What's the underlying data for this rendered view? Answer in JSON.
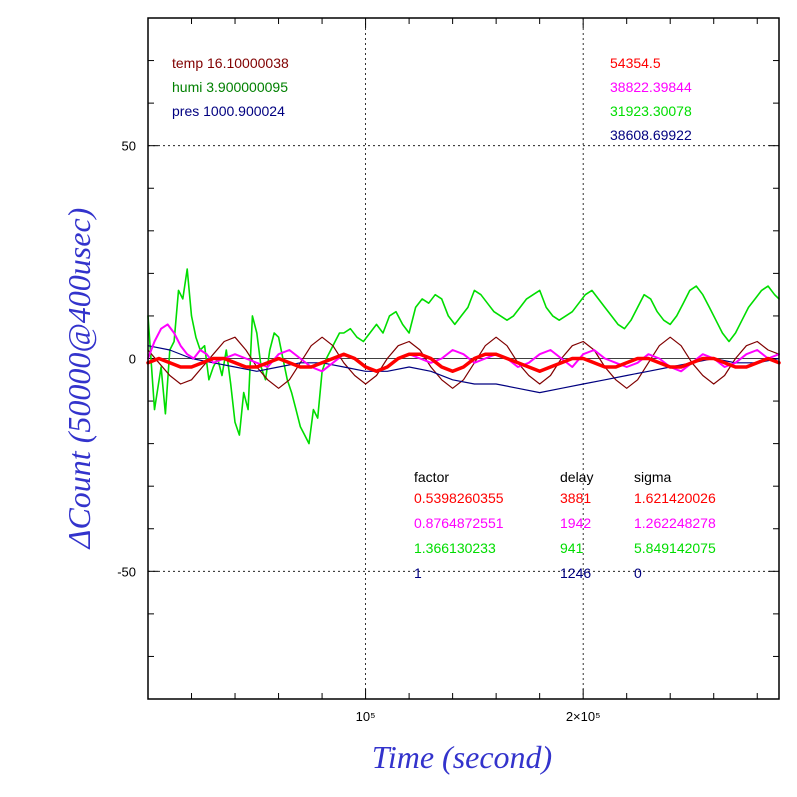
{
  "chart_data": {
    "type": "line",
    "xlabel": "Time (second)",
    "ylabel": "ΔCount (50000@400usec)",
    "xlim": [
      0,
      290000
    ],
    "ylim": [
      -80,
      80
    ],
    "x_tick_values": [
      100000,
      200000
    ],
    "x_tick_labels": [
      "10⁵",
      "2×10⁵"
    ],
    "y_tick_values": [
      -50,
      0,
      50
    ],
    "y_tick_labels": [
      "-50",
      "0",
      "50"
    ],
    "grid": "dotted at labeled ticks",
    "colors": {
      "red": "#ff0000",
      "magenta": "#ff00ff",
      "green": "#00dd00",
      "navy": "#000080",
      "dark_red": "#800000",
      "dark_green": "#008000"
    },
    "env_legend": [
      {
        "label": "temp 16.10000038",
        "color": "#800000"
      },
      {
        "label": "humi 3.900000095",
        "color": "#008000"
      },
      {
        "label": "pres 1000.900024",
        "color": "#000080"
      }
    ],
    "baselines": [
      {
        "value": "54354.5",
        "color": "#ff0000"
      },
      {
        "value": "38822.39844",
        "color": "#ff00ff"
      },
      {
        "value": "31923.30078",
        "color": "#00dd00"
      },
      {
        "value": "38608.69922",
        "color": "#000080"
      }
    ],
    "fit_table": {
      "headers": [
        "factor",
        "delay",
        "sigma"
      ],
      "rows": [
        {
          "factor": "0.5398260355",
          "delay": "3881",
          "sigma": "1.621420026",
          "color": "#ff0000"
        },
        {
          "factor": "0.8764872551",
          "delay": "1942",
          "sigma": "1.262248278",
          "color": "#ff00ff"
        },
        {
          "factor": "1.366130233",
          "delay": "941",
          "sigma": "5.849142075",
          "color": "#00dd00"
        },
        {
          "factor": "1",
          "delay": "1246",
          "sigma": "0",
          "color": "#000080"
        }
      ]
    },
    "series": [
      {
        "color": "#00dd00",
        "width": 1.6,
        "x": [
          0,
          3000,
          6000,
          8000,
          10000,
          12000,
          14000,
          16000,
          18000,
          20000,
          22000,
          24000,
          26000,
          28000,
          30000,
          32000,
          34000,
          36000,
          38000,
          40000,
          42000,
          44000,
          46000,
          48000,
          50000,
          52000,
          54000,
          56000,
          58000,
          60000,
          62000,
          64000,
          66000,
          68000,
          70000,
          72000,
          74000,
          76000,
          78000,
          80000,
          82000,
          84000,
          86000,
          88000,
          90000,
          93000,
          96000,
          99000,
          102000,
          105000,
          108000,
          111000,
          114000,
          117000,
          120000,
          123000,
          126000,
          129000,
          132000,
          135000,
          138000,
          141000,
          144000,
          147000,
          150000,
          153000,
          156000,
          159000,
          162000,
          165000,
          168000,
          171000,
          174000,
          177000,
          180000,
          183000,
          186000,
          189000,
          192000,
          195000,
          198000,
          201000,
          204000,
          207000,
          210000,
          213000,
          216000,
          219000,
          222000,
          225000,
          228000,
          231000,
          234000,
          237000,
          240000,
          243000,
          246000,
          249000,
          252000,
          255000,
          258000,
          261000,
          264000,
          267000,
          270000,
          273000,
          276000,
          279000,
          282000,
          285000,
          288000,
          290000
        ],
        "y": [
          10,
          -12,
          -2,
          -13,
          2,
          4,
          16,
          14,
          21,
          10,
          5,
          2,
          3,
          -5,
          -2,
          0,
          -4,
          2,
          -6,
          -15,
          -18,
          -8,
          -12,
          10,
          6,
          -2,
          -5,
          2,
          6,
          5,
          0,
          -5,
          -8,
          -12,
          -16,
          -18,
          -20,
          -12,
          -14,
          -3,
          0,
          2,
          4,
          6,
          6,
          7,
          5,
          4,
          6,
          8,
          6,
          10,
          11,
          8,
          6,
          12,
          14,
          13,
          15,
          14,
          10,
          8,
          10,
          12,
          16,
          15,
          13,
          11,
          10,
          9,
          10,
          12,
          14,
          15,
          16,
          12,
          10,
          9,
          10,
          11,
          13,
          15,
          16,
          14,
          12,
          10,
          8,
          7,
          9,
          12,
          15,
          14,
          11,
          9,
          8,
          10,
          13,
          16,
          17,
          15,
          12,
          9,
          6,
          4,
          6,
          9,
          12,
          14,
          16,
          17,
          15,
          14
        ]
      },
      {
        "color": "#800000",
        "width": 1.2,
        "x": [
          0,
          5000,
          10000,
          15000,
          20000,
          25000,
          30000,
          35000,
          40000,
          45000,
          50000,
          55000,
          60000,
          65000,
          70000,
          75000,
          80000,
          85000,
          90000,
          95000,
          100000,
          105000,
          110000,
          115000,
          120000,
          125000,
          130000,
          135000,
          140000,
          145000,
          150000,
          155000,
          160000,
          165000,
          170000,
          175000,
          180000,
          185000,
          190000,
          195000,
          200000,
          205000,
          210000,
          215000,
          220000,
          225000,
          230000,
          235000,
          240000,
          245000,
          250000,
          255000,
          260000,
          265000,
          270000,
          275000,
          280000,
          285000,
          290000
        ],
        "y": [
          2,
          -1,
          -4,
          -6,
          -5,
          -2,
          1,
          4,
          5,
          2,
          -2,
          -5,
          -7,
          -5,
          -1,
          3,
          5,
          3,
          -1,
          -4,
          -6,
          -4,
          0,
          3,
          4,
          2,
          -2,
          -5,
          -7,
          -5,
          -1,
          3,
          5,
          3,
          -1,
          -4,
          -6,
          -4,
          0,
          3,
          4,
          2,
          -2,
          -5,
          -7,
          -5,
          -1,
          3,
          5,
          3,
          -1,
          -4,
          -6,
          -4,
          0,
          3,
          4,
          2,
          1
        ]
      },
      {
        "color": "#000080",
        "width": 1.2,
        "x": [
          0,
          10000,
          20000,
          30000,
          40000,
          50000,
          60000,
          70000,
          80000,
          90000,
          100000,
          110000,
          120000,
          130000,
          140000,
          150000,
          160000,
          170000,
          180000,
          190000,
          200000,
          210000,
          220000,
          230000,
          240000,
          250000,
          260000,
          270000,
          280000,
          290000
        ],
        "y": [
          3,
          2,
          0,
          -1,
          -2,
          -3,
          -2,
          -1,
          -1,
          -2,
          -3,
          -3,
          -2,
          -3,
          -5,
          -6,
          -6,
          -7,
          -8,
          -7,
          -6,
          -5,
          -4,
          -3,
          -2,
          -1,
          0,
          -1,
          -1,
          0
        ]
      },
      {
        "color": "#ff00ff",
        "width": 2.0,
        "x": [
          0,
          3000,
          6000,
          9000,
          12000,
          15000,
          18000,
          21000,
          24000,
          27000,
          30000,
          35000,
          40000,
          45000,
          50000,
          55000,
          60000,
          65000,
          70000,
          75000,
          80000,
          85000,
          90000,
          95000,
          100000,
          105000,
          110000,
          115000,
          120000,
          125000,
          130000,
          135000,
          140000,
          145000,
          150000,
          155000,
          160000,
          165000,
          170000,
          175000,
          180000,
          185000,
          190000,
          195000,
          200000,
          205000,
          210000,
          215000,
          220000,
          225000,
          230000,
          235000,
          240000,
          245000,
          250000,
          255000,
          260000,
          265000,
          270000,
          275000,
          280000,
          285000,
          290000
        ],
        "y": [
          0,
          4,
          7,
          8,
          6,
          3,
          1,
          0,
          2,
          1,
          -1,
          0,
          1,
          0,
          -1,
          -2,
          1,
          2,
          0,
          -2,
          -3,
          -1,
          1,
          0,
          -2,
          -3,
          -2,
          0,
          1,
          0,
          -1,
          0,
          2,
          1,
          -1,
          0,
          1,
          0,
          -2,
          -1,
          1,
          2,
          0,
          -2,
          1,
          2,
          0,
          -1,
          -2,
          -1,
          1,
          0,
          -2,
          -3,
          -1,
          1,
          0,
          -2,
          -1,
          1,
          2,
          0,
          1
        ]
      },
      {
        "color": "#ff0000",
        "width": 3.5,
        "x": [
          0,
          5000,
          10000,
          15000,
          20000,
          25000,
          30000,
          35000,
          40000,
          45000,
          50000,
          55000,
          60000,
          65000,
          70000,
          75000,
          80000,
          85000,
          90000,
          95000,
          100000,
          105000,
          110000,
          115000,
          120000,
          125000,
          130000,
          135000,
          140000,
          145000,
          150000,
          155000,
          160000,
          165000,
          170000,
          175000,
          180000,
          185000,
          190000,
          195000,
          200000,
          205000,
          210000,
          215000,
          220000,
          225000,
          230000,
          235000,
          240000,
          245000,
          250000,
          255000,
          260000,
          265000,
          270000,
          275000,
          280000,
          285000,
          290000
        ],
        "y": [
          -1,
          0,
          -1,
          -2,
          -2,
          -1,
          0,
          0,
          -1,
          -2,
          -2,
          -1,
          0,
          -1,
          -2,
          -2,
          -1,
          0,
          1,
          0,
          -2,
          -3,
          -2,
          0,
          1,
          1,
          0,
          -2,
          -3,
          -2,
          0,
          1,
          1,
          0,
          -1,
          -2,
          -3,
          -2,
          -1,
          0,
          0,
          -1,
          -2,
          -2,
          -1,
          0,
          0,
          -1,
          -2,
          -2,
          -1,
          0,
          0,
          -1,
          -2,
          -2,
          -1,
          0,
          -1
        ]
      }
    ]
  }
}
